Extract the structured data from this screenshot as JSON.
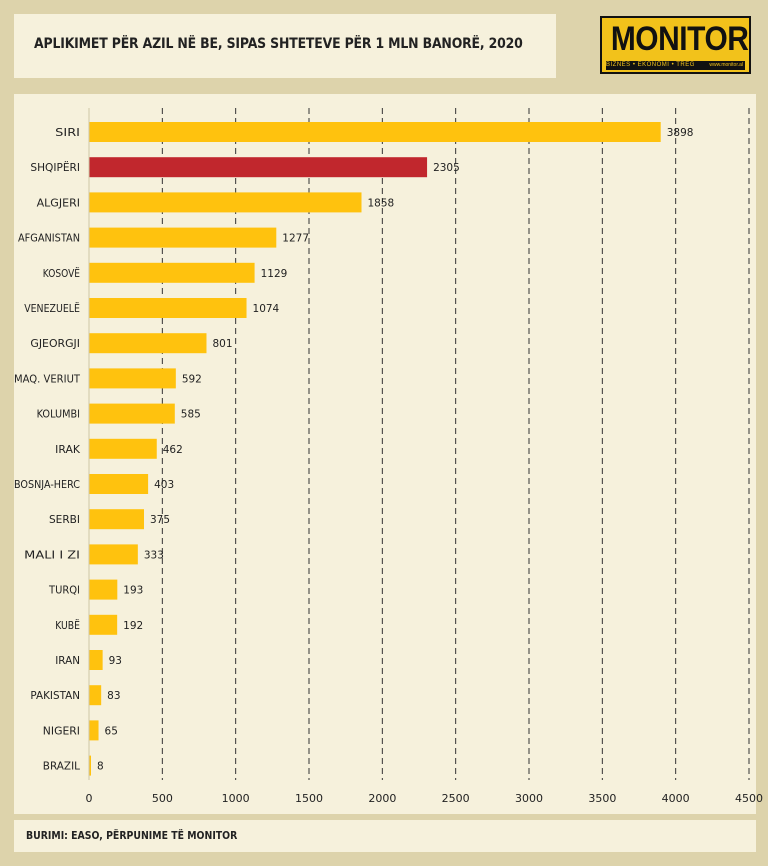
{
  "header": {
    "title": "APLIKIMET PËR AZIL NË BE, SIPAS SHTETEVE PËR 1 MLN BANORË, 2020"
  },
  "logo": {
    "word": "MONITOR",
    "tagline": "BIZNES • EKONOMI • TREG",
    "url": "www.monitor.al"
  },
  "footer": {
    "source": "BURIMI: EASO, PËRPUNIME TË MONITOR"
  },
  "colors": {
    "bar": "#ffc20e",
    "highlight": "#c1272d",
    "grid": "#333333"
  },
  "chart_data": {
    "type": "bar",
    "orientation": "horizontal",
    "title": "APLIKIMET PËR AZIL NË BE, SIPAS SHTETEVE PËR 1 MLN BANORË, 2020",
    "categories": [
      "SIRI",
      "SHQIPËRI",
      "ALGJERI",
      "AFGANISTAN",
      "KOSOVË",
      "VENEZUELË",
      "GJEORGJI",
      "MAQ. VERIUT",
      "KOLUMBI",
      "IRAK",
      "BOSNJA-HERC",
      "SERBI",
      "MALI I ZI",
      "TURQI",
      "KUBË",
      "IRAN",
      "PAKISTAN",
      "NIGERI",
      "BRAZIL"
    ],
    "values": [
      3898,
      2305,
      1858,
      1277,
      1129,
      1074,
      801,
      592,
      585,
      462,
      403,
      375,
      333,
      193,
      192,
      93,
      83,
      65,
      8
    ],
    "highlight_category": "SHQIPËRI",
    "xlim": [
      0,
      4500
    ],
    "xticks": [
      0,
      500,
      1000,
      1500,
      2000,
      2500,
      3000,
      3500,
      4000,
      4500
    ],
    "grid": "vertical dashed",
    "data_labels": true
  }
}
